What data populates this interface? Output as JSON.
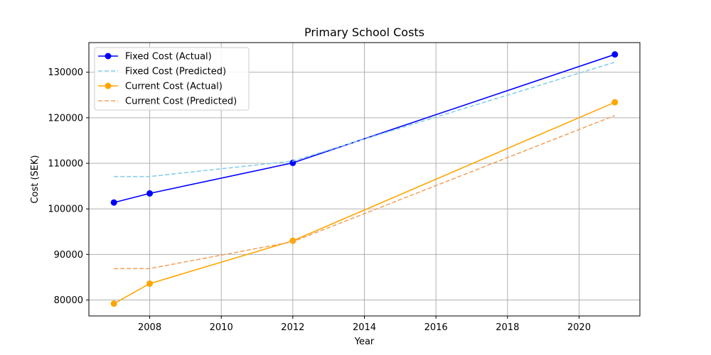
{
  "chart_data": {
    "type": "line",
    "title": "Primary School Costs",
    "xlabel": "Year",
    "ylabel": "Cost (SEK)",
    "xlim": [
      2006.3,
      2021.7
    ],
    "ylim": [
      76500,
      136500
    ],
    "xticks": [
      2008,
      2010,
      2012,
      2014,
      2016,
      2018,
      2020
    ],
    "yticks": [
      80000,
      90000,
      100000,
      110000,
      120000,
      130000
    ],
    "grid": true,
    "legend_position": "top-left",
    "series": [
      {
        "name": "Fixed Cost (Actual)",
        "color": "#0000ff",
        "style": "solid",
        "marker": "circle",
        "x": [
          2007,
          2008,
          2012,
          2021
        ],
        "y": [
          101400,
          103400,
          110100,
          133900
        ]
      },
      {
        "name": "Fixed Cost (Predicted)",
        "color": "#87ceeb",
        "style": "dashed",
        "marker": "none",
        "x": [
          2007,
          2008,
          2012,
          2021
        ],
        "y": [
          107100,
          107100,
          110500,
          132200
        ]
      },
      {
        "name": "Current Cost (Actual)",
        "color": "#ffa500",
        "style": "solid",
        "marker": "circle",
        "x": [
          2007,
          2008,
          2012,
          2021
        ],
        "y": [
          79200,
          83600,
          93000,
          123400
        ]
      },
      {
        "name": "Current Cost (Predicted)",
        "color": "#f4a460",
        "style": "dashed",
        "marker": "none",
        "x": [
          2007,
          2008,
          2012,
          2021
        ],
        "y": [
          86900,
          86900,
          92800,
          120500
        ]
      }
    ]
  }
}
